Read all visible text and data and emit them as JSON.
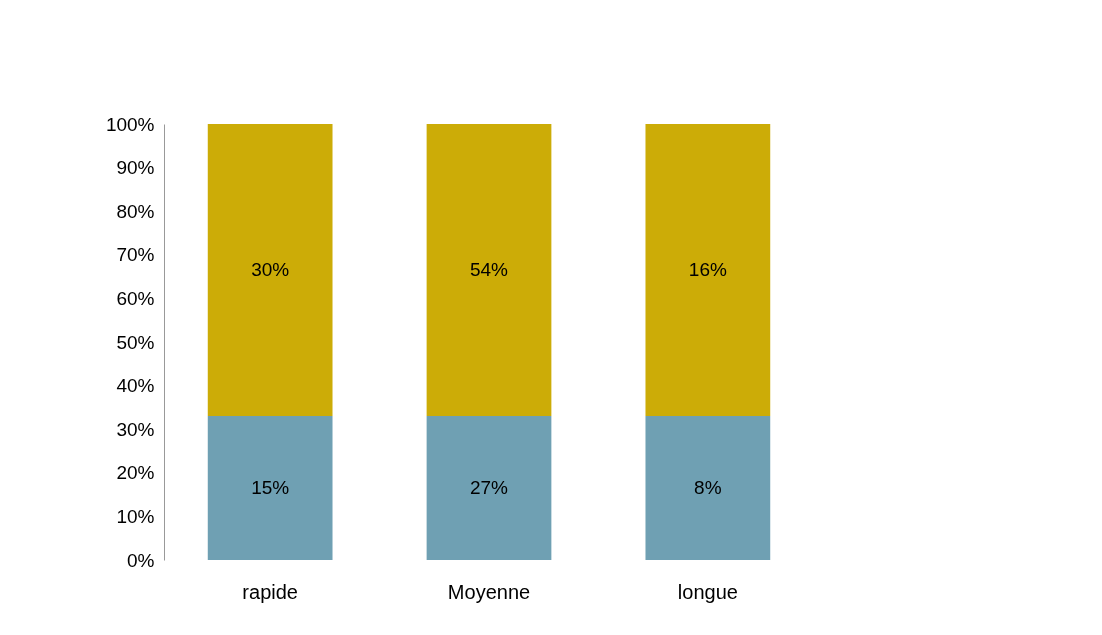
{
  "chart_data": {
    "type": "bar",
    "stacked": true,
    "categories": [
      "rapide",
      "Moyenne",
      "longue"
    ],
    "series": [
      {
        "color": "#6fa0b3",
        "values": [
          33,
          33,
          33
        ]
      },
      {
        "color": "#ccac07",
        "values": [
          67,
          67,
          67
        ]
      }
    ],
    "annotations": [
      "15%",
      "27%",
      "8%",
      "30%",
      "54%",
      "16%"
    ],
    "ylim": [
      0,
      100
    ],
    "yticks": [
      {
        "value": 0,
        "label": "0%"
      },
      {
        "value": 10,
        "label": "10%"
      },
      {
        "value": 20,
        "label": "20%"
      },
      {
        "value": 30,
        "label": "30%"
      },
      {
        "value": 40,
        "label": "40%"
      },
      {
        "value": 50,
        "label": "50%"
      },
      {
        "value": 60,
        "label": "60%"
      },
      {
        "value": 70,
        "label": "70%"
      },
      {
        "value": 80,
        "label": "80%"
      },
      {
        "value": 90,
        "label": "90%"
      },
      {
        "value": 100,
        "label": "100%"
      }
    ],
    "grid": false,
    "legend": false
  }
}
